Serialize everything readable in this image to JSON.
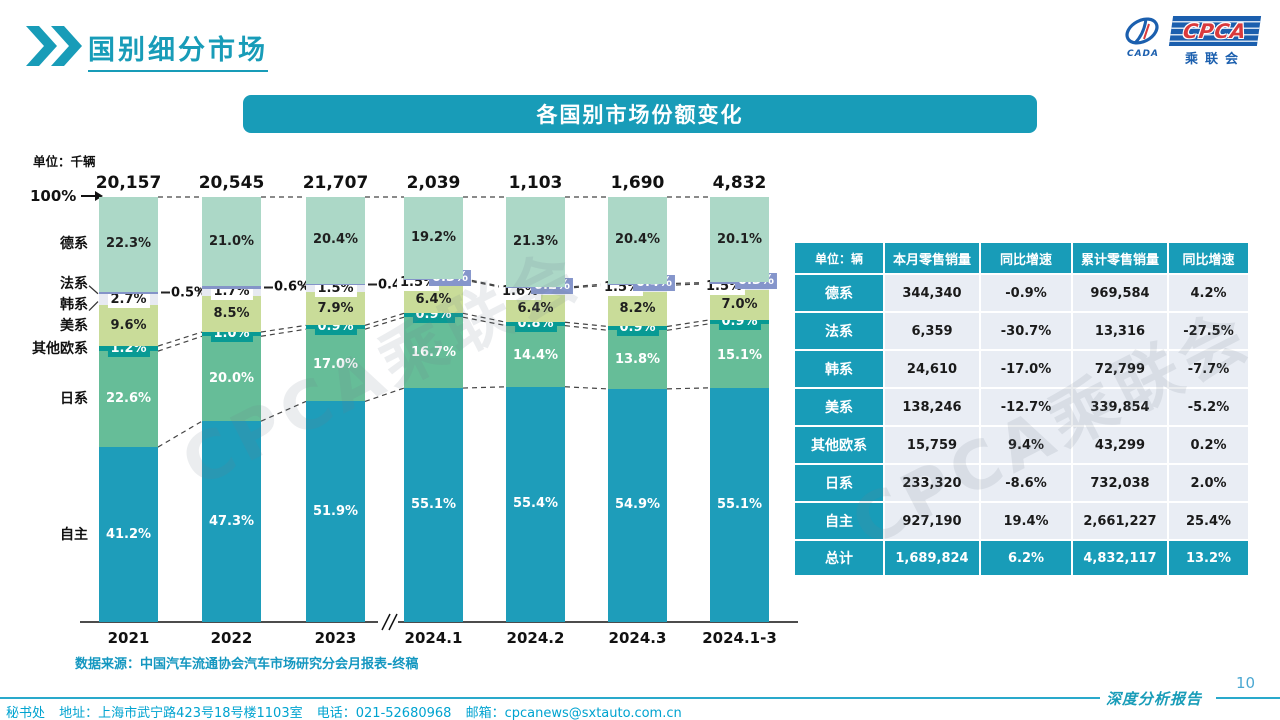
{
  "header": {
    "title": "国别细分市场"
  },
  "logo": {
    "mark_text": "CADA",
    "main": "CPCA",
    "sub": "乘联会"
  },
  "banner": {
    "title": "各国别市场份额变化"
  },
  "watermark": {
    "text": "CPCA乘联会"
  },
  "chart_data": {
    "type": "bar",
    "subtype": "stacked-percent",
    "title": "各国别市场份额变化",
    "unit_label": "单位：千辆",
    "axis_top_label": "100%",
    "grid": false,
    "legend_position": "left-axis-labels",
    "categories": [
      "2021",
      "2022",
      "2023",
      "2024.1",
      "2024.2",
      "2024.3",
      "2024.1-3"
    ],
    "totals": [
      "20,157",
      "20,545",
      "21,707",
      "2,039",
      "1,103",
      "1,690",
      "4,832"
    ],
    "axis_break_after": "2023",
    "ylim": [
      0,
      100
    ],
    "series": [
      {
        "name": "自主",
        "color": "#1E9DBA",
        "label_color": "#ffffff",
        "label_style": "inside",
        "values": [
          41.2,
          47.3,
          51.9,
          55.1,
          55.4,
          54.9,
          55.1
        ]
      },
      {
        "name": "日系",
        "color": "#66BD98",
        "label_color": "#ffffff",
        "label_style": "inside",
        "values": [
          22.6,
          20.0,
          17.0,
          16.7,
          14.4,
          13.8,
          15.1
        ]
      },
      {
        "name": "其他欧系",
        "color": "#089A94",
        "label_color": "#ffffff",
        "label_style": "dark-badge",
        "values": [
          1.2,
          1.0,
          0.9,
          0.9,
          0.8,
          0.9,
          0.9
        ]
      },
      {
        "name": "美系",
        "color": "#C9DC99",
        "label_color": "#1f1f1f",
        "label_style": "inside",
        "values": [
          9.6,
          8.5,
          7.9,
          6.4,
          6.4,
          8.2,
          7.0
        ]
      },
      {
        "name": "韩系",
        "color": "#E7EAF2",
        "label_color": "#1a1a1a",
        "label_style": "white-box",
        "values": [
          2.7,
          1.7,
          1.5,
          1.5,
          1.6,
          1.5,
          1.5
        ]
      },
      {
        "name": "法系",
        "color": "#8494C8",
        "label_color": "#ffffff",
        "label_style": "french",
        "values": [
          0.5,
          0.6,
          0.4,
          0.3,
          0.2,
          0.4,
          0.3
        ]
      },
      {
        "name": "德系",
        "color": "#ACD8C7",
        "label_color": "#1f1f1f",
        "label_style": "inside",
        "values": [
          22.3,
          21.0,
          20.4,
          19.2,
          21.3,
          20.4,
          20.1
        ]
      }
    ]
  },
  "table": {
    "header": [
      "单位：辆",
      "本月零售销量",
      "同比增速",
      "累计零售销量",
      "同比增速"
    ],
    "rows": [
      [
        "德系",
        "344,340",
        "-0.9%",
        "969,584",
        "4.2%"
      ],
      [
        "法系",
        "6,359",
        "-30.7%",
        "13,316",
        "-27.5%"
      ],
      [
        "韩系",
        "24,610",
        "-17.0%",
        "72,799",
        "-7.7%"
      ],
      [
        "美系",
        "138,246",
        "-12.7%",
        "339,854",
        "-5.2%"
      ],
      [
        "其他欧系",
        "15,759",
        "9.4%",
        "43,299",
        "0.2%"
      ],
      [
        "日系",
        "233,320",
        "-8.6%",
        "732,038",
        "2.0%"
      ],
      [
        "自主",
        "927,190",
        "19.4%",
        "2,661,227",
        "25.4%"
      ]
    ],
    "total_row": [
      "总计",
      "1,689,824",
      "6.2%",
      "4,832,117",
      "13.2%"
    ]
  },
  "source": {
    "text": "数据来源：中国汽车流通协会汽车市场研究分会月报表-终稿"
  },
  "footer": {
    "dept": "秘书处",
    "address": "地址：上海市武宁路423号18号楼1103室",
    "phone": "电话：021-52680968",
    "email": "邮箱：cpcanews@sxtauto.com.cn",
    "report": "深度分析报告",
    "page": "10"
  }
}
